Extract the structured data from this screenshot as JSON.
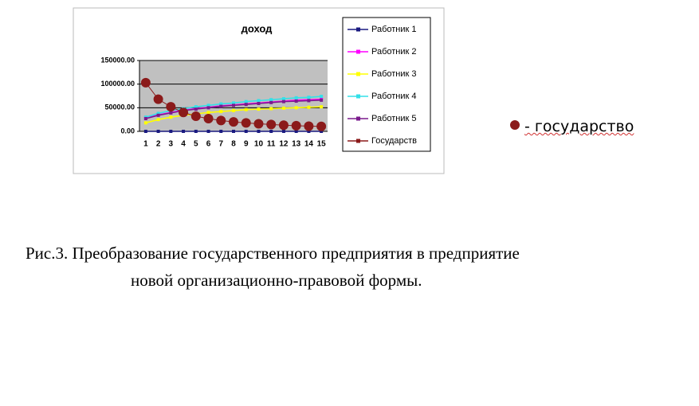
{
  "chart_data": {
    "type": "line",
    "title": "доход",
    "categories": [
      "1",
      "2",
      "3",
      "4",
      "5",
      "6",
      "7",
      "8",
      "9",
      "10",
      "11",
      "12",
      "13",
      "14",
      "15"
    ],
    "ylim": [
      0,
      150000
    ],
    "yticks": [
      {
        "value": 0,
        "label": "0.00"
      },
      {
        "value": 50000,
        "label": "50000.00"
      },
      {
        "value": 100000,
        "label": "100000.00"
      },
      {
        "value": 150000,
        "label": "150000.00"
      }
    ],
    "grid": true,
    "series": [
      {
        "name": "Работник 1",
        "color": "#1a1a80",
        "values": [
          0,
          0,
          0,
          0,
          0,
          0,
          0,
          0,
          0,
          0,
          0,
          0,
          0,
          0,
          0
        ]
      },
      {
        "name": "Работник 2",
        "color": "#ff00ff",
        "values": [
          28000,
          35000,
          40000,
          45000,
          48000,
          51000,
          54000,
          56000,
          58000,
          60000,
          62000,
          64000,
          66000,
          67000,
          68000
        ]
      },
      {
        "name": "Работник 3",
        "color": "#ffff00",
        "values": [
          18000,
          25000,
          30000,
          34000,
          37000,
          40000,
          42000,
          44000,
          46000,
          47000,
          48000,
          49000,
          50000,
          51000,
          52000
        ]
      },
      {
        "name": "Работник 4",
        "color": "#33e0e8",
        "values": [
          30000,
          38000,
          44000,
          48000,
          52000,
          55000,
          58000,
          60000,
          63000,
          65000,
          67000,
          69000,
          71000,
          72000,
          74000
        ]
      },
      {
        "name": "Работник 5",
        "color": "#7a1a8c",
        "values": [
          27000,
          34000,
          39000,
          44000,
          47000,
          50000,
          53000,
          55000,
          57000,
          59000,
          61000,
          63000,
          64000,
          65000,
          66000
        ]
      },
      {
        "name": "Государств",
        "color": "#8b1a1a",
        "values": [
          103000,
          68000,
          52000,
          40000,
          32000,
          27000,
          23000,
          20000,
          18000,
          16000,
          14500,
          13000,
          12000,
          11000,
          10500
        ]
      }
    ]
  },
  "annotation": "- государство",
  "caption": [
    "Рис.3. Преобразование государственного предприятия в предприятие",
    "новой организационно-правовой формы."
  ]
}
